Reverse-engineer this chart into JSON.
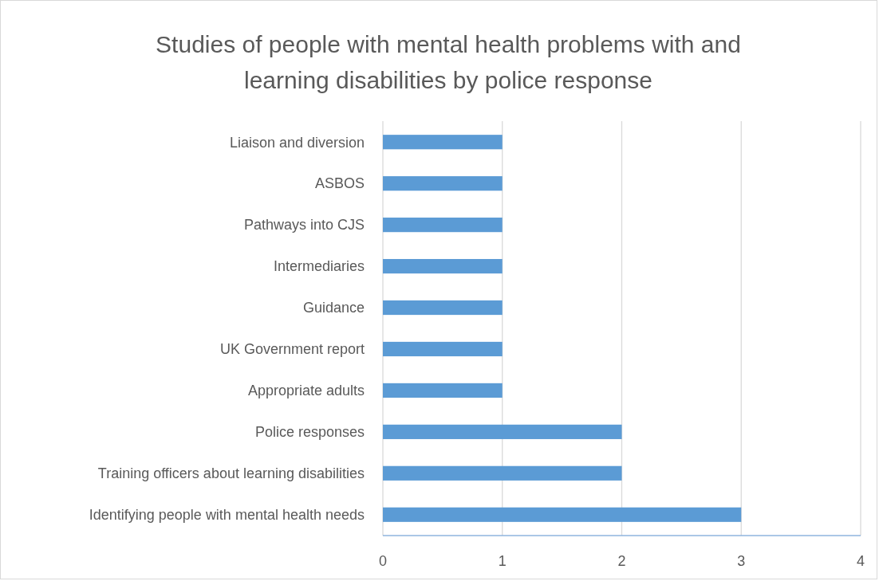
{
  "chart_data": {
    "type": "bar",
    "orientation": "horizontal",
    "title": "Studies of people with mental health problems with and learning disabilities by police response",
    "categories": [
      "Liaison and diversion",
      "ASBOS",
      "Pathways into CJS",
      "Intermediaries",
      "Guidance",
      "UK Government report",
      "Appropriate adults",
      "Police responses",
      "Training officers about learning disabilities",
      "Identifying people with mental health needs"
    ],
    "values": [
      1,
      1,
      1,
      1,
      1,
      1,
      1,
      2,
      2,
      3
    ],
    "color": "#5b9bd5",
    "xlim": [
      0,
      4
    ],
    "xticks": [
      0,
      1,
      2,
      3,
      4
    ],
    "grid": "x"
  }
}
